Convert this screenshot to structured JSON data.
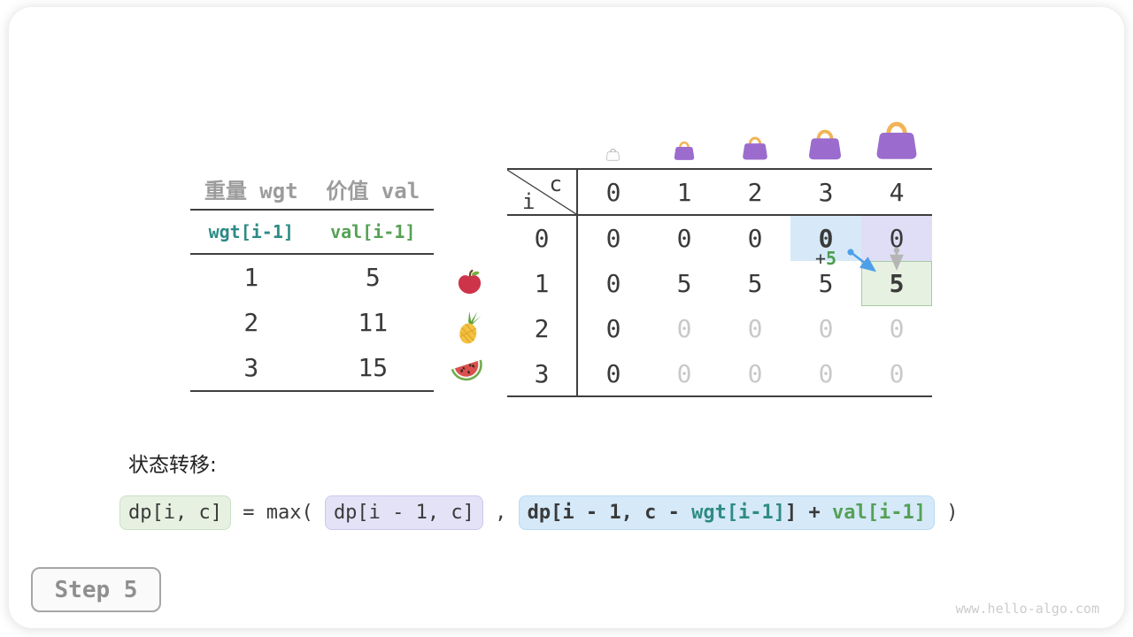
{
  "meta": {
    "step_label": "Step 5",
    "watermark": "www.hello-algo.com"
  },
  "items_table": {
    "col_headers": [
      "重量 wgt",
      "价值 val"
    ],
    "index_row": {
      "wgt": "wgt[i-1]",
      "val": "val[i-1]"
    },
    "rows": [
      {
        "wgt": "1",
        "val": "5",
        "icon": "apple"
      },
      {
        "wgt": "2",
        "val": "11",
        "icon": "pineapple"
      },
      {
        "wgt": "3",
        "val": "15",
        "icon": "watermelon"
      }
    ]
  },
  "dp_table": {
    "corner": {
      "row_var": "i",
      "col_var": "c"
    },
    "col_headers": [
      "0",
      "1",
      "2",
      "3",
      "4"
    ],
    "row_headers": [
      "0",
      "1",
      "2",
      "3"
    ],
    "cells": [
      [
        {
          "v": "0"
        },
        {
          "v": "0"
        },
        {
          "v": "0"
        },
        {
          "v": "0",
          "bold": true,
          "hl": "blue"
        },
        {
          "v": "0",
          "hl": "lavender"
        }
      ],
      [
        {
          "v": "0"
        },
        {
          "v": "5"
        },
        {
          "v": "5"
        },
        {
          "v": "5"
        },
        {
          "v": "5",
          "bold": true,
          "hl": "green"
        }
      ],
      [
        {
          "v": "0"
        },
        {
          "v": "0",
          "dim": true
        },
        {
          "v": "0",
          "dim": true
        },
        {
          "v": "0",
          "dim": true
        },
        {
          "v": "0",
          "dim": true
        }
      ],
      [
        {
          "v": "0"
        },
        {
          "v": "0",
          "dim": true
        },
        {
          "v": "0",
          "dim": true
        },
        {
          "v": "0",
          "dim": true
        },
        {
          "v": "0",
          "dim": true
        }
      ]
    ],
    "annotation": {
      "plus": "+",
      "value": "5"
    },
    "capacity_icons": [
      "bag-ghost",
      "bag-xs",
      "bag-sm",
      "bag-md",
      "bag-lg"
    ]
  },
  "formula": {
    "label": "状态转移:",
    "segments": [
      {
        "box": "green",
        "parts": [
          {
            "text": "dp[i, c]",
            "color": "dark"
          }
        ]
      },
      {
        "box": null,
        "parts": [
          {
            "text": " = max( ",
            "color": "dark"
          }
        ]
      },
      {
        "box": "lavender",
        "parts": [
          {
            "text": "dp[i - 1, c]",
            "color": "dark"
          }
        ]
      },
      {
        "box": null,
        "parts": [
          {
            "text": " , ",
            "color": "dark"
          }
        ]
      },
      {
        "box": "blue",
        "bold": true,
        "parts": [
          {
            "text": "dp[i - 1, c - ",
            "color": "dark"
          },
          {
            "text": "wgt[i-1]",
            "color": "teal"
          },
          {
            "text": "] + ",
            "color": "dark"
          },
          {
            "text": "val[i-1]",
            "color": "green"
          }
        ]
      },
      {
        "box": null,
        "parts": [
          {
            "text": " )",
            "color": "dark"
          }
        ]
      }
    ]
  },
  "colors": {
    "teal": "#2e8b85",
    "green": "#55a155",
    "dark_text": "#3a3a3a",
    "gray_header": "#9c9c9c",
    "dim_cell": "#c9c9c9",
    "highlight_blue": "#d7e9f8",
    "highlight_lavender": "#dfdef6",
    "highlight_green": "#e6f1e1",
    "highlight_green_border": "#a6cba1",
    "arrow_blue": "#4d9fe8",
    "arrow_gray": "#b5b5b5",
    "bag_purple": "#9b6cce",
    "bag_handle": "#f1b456"
  }
}
